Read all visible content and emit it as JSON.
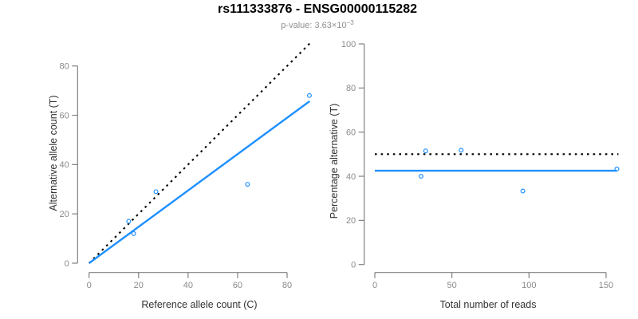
{
  "header": {
    "title": "rs111333876 - ENSG00000115282",
    "subtitle_prefix": "p-value: 3.63×10",
    "subtitle_exponent": "−3"
  },
  "colors": {
    "accent_blue": "#1E90FF",
    "reference_line_black": "#000000",
    "axis_gray": "#808080",
    "tick_label_gray": "#8a8a8a",
    "axis_title_gray": "#333333",
    "subtitle_gray": "#8f8f8f"
  },
  "chart_data": [
    {
      "type": "scatter",
      "title": "",
      "xlabel": "Reference allele count (C)",
      "ylabel": "Alternative allele count (T)",
      "xticks": [
        0,
        20,
        40,
        60,
        80
      ],
      "yticks": [
        0,
        20,
        40,
        60,
        80
      ],
      "xlim": [
        0,
        89
      ],
      "ylim": [
        0,
        89
      ],
      "grid": false,
      "legend": "none",
      "points": [
        [
          16,
          17
        ],
        [
          18,
          12
        ],
        [
          27,
          29
        ],
        [
          64,
          32
        ],
        [
          89,
          68
        ]
      ],
      "point_color": "#1E90FF",
      "lines": [
        {
          "name": "identity-line",
          "x1": 0,
          "y1": 0,
          "x2": 89.3,
          "y2": 89.3,
          "style": "dotted",
          "color": "#000000"
        },
        {
          "name": "fit-line",
          "x1": 0,
          "y1": 0,
          "x2": 89.1,
          "y2": 65.7,
          "style": "solid",
          "color": "#1E90FF"
        }
      ]
    },
    {
      "type": "scatter",
      "title": "",
      "xlabel": "Total number of reads",
      "ylabel": "Percentage alternative (T)",
      "xticks": [
        0,
        50,
        100,
        150
      ],
      "yticks": [
        0,
        20,
        40,
        60,
        80,
        100
      ],
      "xlim": [
        0,
        158
      ],
      "ylim": [
        0,
        100
      ],
      "grid": false,
      "legend": "none",
      "points": [
        [
          30,
          40
        ],
        [
          33,
          51.5
        ],
        [
          56,
          51.8
        ],
        [
          96,
          33.3
        ],
        [
          157,
          43.3
        ]
      ],
      "point_color": "#1E90FF",
      "lines": [
        {
          "name": "reference-line-50pct",
          "x1": 0,
          "y1": 50,
          "x2": 158,
          "y2": 50,
          "style": "dotted",
          "color": "#000000"
        },
        {
          "name": "fit-line",
          "x1": 0,
          "y1": 42.5,
          "x2": 157,
          "y2": 42.5,
          "style": "solid",
          "color": "#1E90FF"
        }
      ]
    }
  ]
}
